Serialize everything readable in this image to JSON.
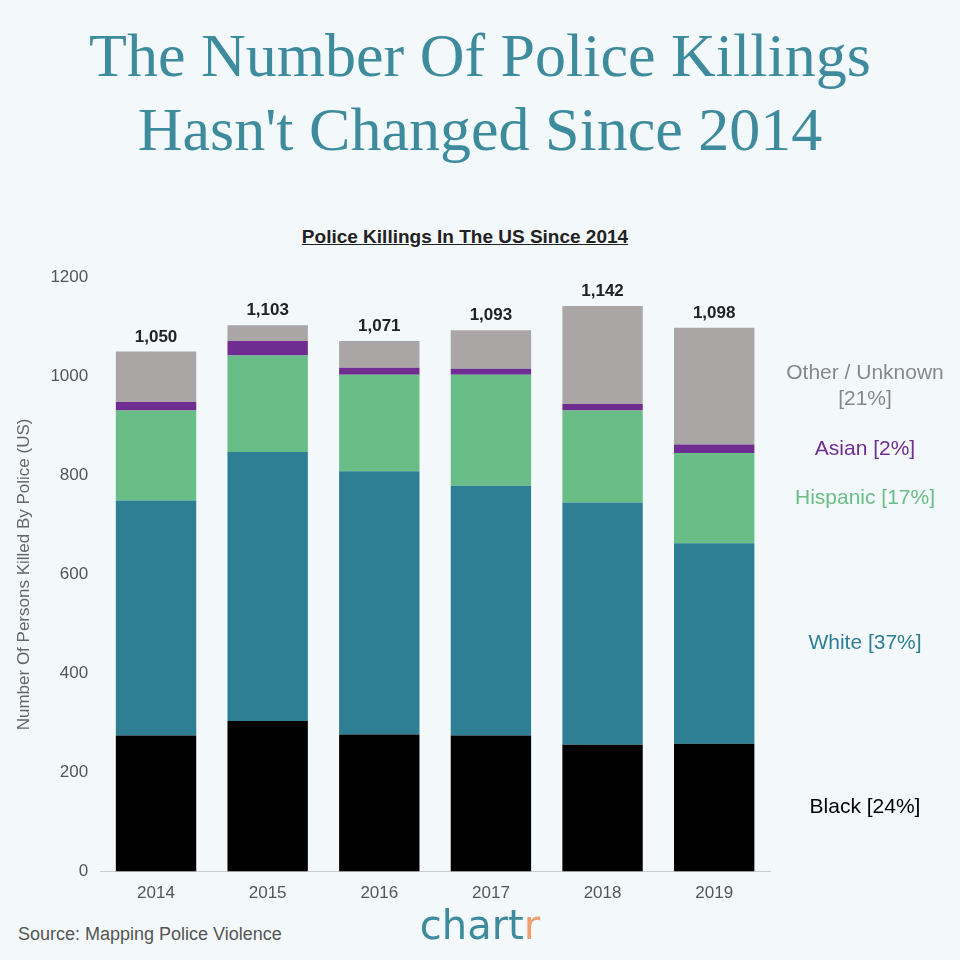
{
  "chart_data": {
    "type": "bar",
    "title": "The Number Of Police Killings Hasn't Changed Since 2014",
    "subtitle": "Police Killings In The US Since 2014",
    "y_label": "Number Of Persons Killed By Police (US)",
    "source": "Source: Mapping Police Violence",
    "logo": "chartr",
    "categories": [
      "2014",
      "2015",
      "2016",
      "2017",
      "2018",
      "2019"
    ],
    "series": [
      {
        "name": "Black [24%]",
        "color": "#000000",
        "values": [
          275,
          304,
          277,
          275,
          256,
          258
        ]
      },
      {
        "name": "White [37%]",
        "color": "#2e7f94",
        "values": [
          474,
          543,
          531,
          504,
          489,
          405
        ]
      },
      {
        "name": "Hispanic [17%]",
        "color": "#69bd87",
        "values": [
          182,
          195,
          195,
          224,
          186,
          182
        ]
      },
      {
        "name": "Asian [2%]",
        "color": "#6f2c91",
        "values": [
          17,
          29,
          14,
          12,
          13,
          17
        ]
      },
      {
        "name": "Other / Unknown [21%]",
        "color": "#aaa6a6",
        "values": [
          102,
          32,
          54,
          78,
          198,
          236
        ]
      }
    ],
    "totals": [
      1050,
      1103,
      1071,
      1093,
      1142,
      1098
    ],
    "total_labels": [
      "1,050",
      "1,103",
      "1,071",
      "1,093",
      "1,142",
      "1,098"
    ],
    "ylim": [
      0,
      1200
    ],
    "yticks": [
      0,
      200,
      400,
      600,
      800,
      1000,
      1200
    ],
    "stacked": true,
    "grid": false,
    "legend": "right"
  }
}
